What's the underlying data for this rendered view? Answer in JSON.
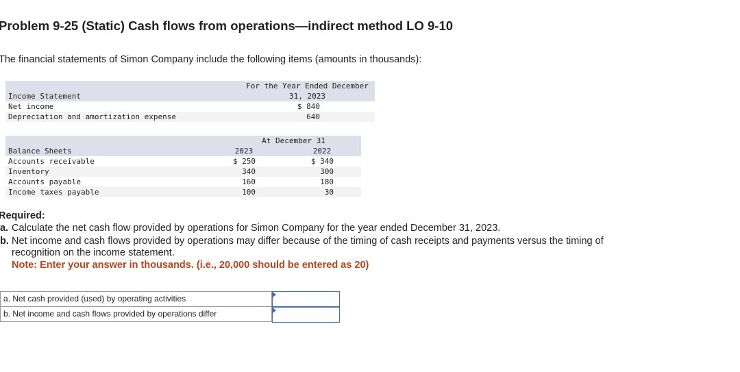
{
  "header": {
    "title": "Problem 9-25 (Static) Cash flows from operations—indirect method LO 9-10"
  },
  "intro": "The financial statements of Simon Company include the following items (amounts in thousands):",
  "income_statement": {
    "column_header": "For the Year Ended December 31, 2023",
    "heading": "Income Statement",
    "rows": [
      {
        "label": "Net income",
        "value": "$ 840"
      },
      {
        "label": "Depreciation and amortization expense",
        "value": "640"
      }
    ]
  },
  "balance_sheets": {
    "column_header": "At December 31",
    "heading": "Balance Sheets",
    "years": [
      "2023",
      "2022"
    ],
    "rows": [
      {
        "label": "Accounts receivable",
        "values": [
          "$ 250",
          "$ 340"
        ]
      },
      {
        "label": "Inventory",
        "values": [
          "340",
          "300"
        ]
      },
      {
        "label": "Accounts payable",
        "values": [
          "160",
          "180"
        ]
      },
      {
        "label": "Income taxes payable",
        "values": [
          "100",
          "30"
        ]
      }
    ]
  },
  "required": {
    "heading": "Required:",
    "items": [
      {
        "letter": "a.",
        "text": "Calculate the net cash flow provided by operations for Simon Company for the year ended December 31, 2023."
      },
      {
        "letter": "b.",
        "text": "Net income and cash flows provided by operations may differ because of the timing of cash receipts and payments versus the timing of recognition on the income statement."
      }
    ],
    "note": "Note: Enter your answer in thousands. (i.e., 20,000 should be entered as 20)"
  },
  "answers": {
    "rows": [
      "a. Net cash provided (used) by operating activities",
      "b. Net income and cash flows provided by operations differ"
    ]
  }
}
